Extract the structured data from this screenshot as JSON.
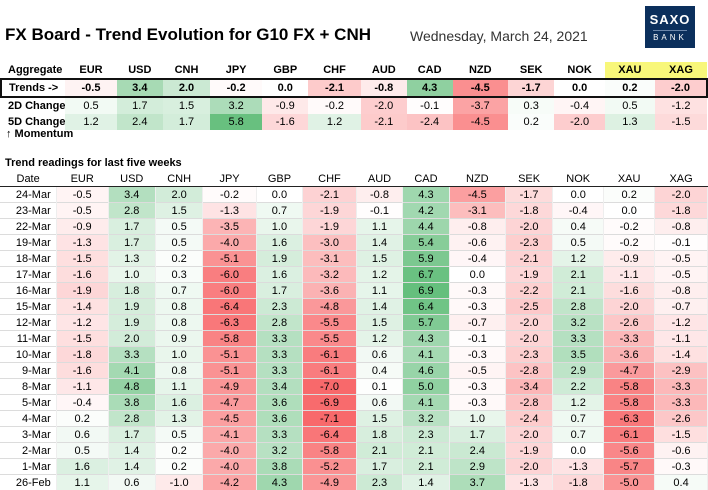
{
  "header": {
    "title": "FX Board - Trend Evolution for G10 FX + CNH",
    "date": "Wednesday, March 24, 2021",
    "logo_top": "SAXO",
    "logo_bottom": "BANK"
  },
  "colors": {
    "gold_header": "#f8f77a",
    "positive": "#63be7b",
    "negative": "#f8696b",
    "brand": "#0b2f5c"
  },
  "chart_data": {
    "type": "table",
    "currencies": [
      "EUR",
      "USD",
      "CNH",
      "JPY",
      "GBP",
      "CHF",
      "AUD",
      "CAD",
      "NZD",
      "SEK",
      "NOK",
      "XAU",
      "XAG"
    ],
    "aggregate": {
      "header_label": "Aggregate",
      "rows": [
        {
          "label": "Trends ->",
          "values": [
            -0.5,
            3.4,
            2.0,
            -0.2,
            0.0,
            -2.1,
            -0.8,
            4.3,
            -4.5,
            -1.7,
            0.0,
            0.2,
            -2.0
          ]
        },
        {
          "label": "2D Change",
          "values": [
            0.5,
            1.7,
            1.5,
            3.2,
            -0.9,
            -0.2,
            -2.0,
            -0.1,
            -3.7,
            0.3,
            -0.4,
            0.5,
            -1.2
          ]
        },
        {
          "label": "5D Change",
          "values": [
            1.2,
            2.4,
            1.7,
            5.8,
            -1.6,
            1.2,
            -2.1,
            -2.4,
            -4.5,
            0.2,
            -2.0,
            1.3,
            -1.5
          ]
        }
      ],
      "momentum_label": "↑ Momentum"
    },
    "weekly": {
      "subtitle": "Trend readings for last five weeks",
      "date_header": "Date",
      "rows": [
        {
          "date": "24-Mar",
          "values": [
            -0.5,
            3.4,
            2.0,
            -0.2,
            0.0,
            -2.1,
            -0.8,
            4.3,
            -4.5,
            -1.7,
            0.0,
            0.2,
            -2.0
          ]
        },
        {
          "date": "23-Mar",
          "values": [
            -0.5,
            2.8,
            1.5,
            -1.3,
            0.7,
            -1.9,
            -0.1,
            4.2,
            -3.1,
            -1.8,
            -0.4,
            0.0,
            -1.8
          ]
        },
        {
          "date": "22-Mar",
          "values": [
            -0.9,
            1.7,
            0.5,
            -3.5,
            1.0,
            -1.9,
            1.1,
            4.4,
            -0.8,
            -2.0,
            0.4,
            -0.2,
            -0.8
          ]
        },
        {
          "date": "19-Mar",
          "values": [
            -1.3,
            1.7,
            0.5,
            -4.0,
            1.6,
            -3.0,
            1.4,
            5.4,
            -0.6,
            -2.3,
            0.5,
            -0.2,
            -0.1
          ]
        },
        {
          "date": "18-Mar",
          "values": [
            -1.5,
            1.3,
            0.2,
            -5.1,
            1.9,
            -3.1,
            1.5,
            5.9,
            -0.4,
            -2.1,
            1.2,
            -0.9,
            -0.5
          ]
        },
        {
          "date": "17-Mar",
          "values": [
            -1.6,
            1.0,
            0.3,
            -6.0,
            1.6,
            -3.2,
            1.2,
            6.7,
            0.0,
            -1.9,
            2.1,
            -1.1,
            -0.5
          ]
        },
        {
          "date": "16-Mar",
          "values": [
            -1.9,
            1.8,
            0.7,
            -6.0,
            1.7,
            -3.6,
            1.1,
            6.9,
            -0.3,
            -2.2,
            2.1,
            -1.6,
            -0.8
          ]
        },
        {
          "date": "15-Mar",
          "values": [
            -1.4,
            1.9,
            0.8,
            -6.4,
            2.3,
            -4.8,
            1.4,
            6.4,
            -0.3,
            -2.5,
            2.8,
            -2.0,
            -0.7
          ]
        },
        {
          "date": "12-Mar",
          "values": [
            -1.2,
            1.9,
            0.8,
            -6.3,
            2.8,
            -5.5,
            1.5,
            5.7,
            -0.7,
            -2.0,
            3.2,
            -2.6,
            -1.2
          ]
        },
        {
          "date": "11-Mar",
          "values": [
            -1.5,
            2.0,
            0.9,
            -5.8,
            3.3,
            -5.5,
            1.2,
            4.3,
            -0.1,
            -2.0,
            3.3,
            -3.3,
            -1.1
          ]
        },
        {
          "date": "10-Mar",
          "values": [
            -1.8,
            3.3,
            1.0,
            -5.1,
            3.3,
            -6.1,
            0.6,
            4.1,
            -0.3,
            -2.3,
            3.5,
            -3.6,
            -1.4
          ]
        },
        {
          "date": "9-Mar",
          "values": [
            -1.6,
            4.1,
            0.8,
            -5.1,
            3.3,
            -6.1,
            0.4,
            4.6,
            -0.5,
            -2.8,
            2.9,
            -4.7,
            -2.9
          ]
        },
        {
          "date": "8-Mar",
          "values": [
            -1.1,
            4.8,
            1.1,
            -4.9,
            3.4,
            -7.0,
            0.1,
            5.0,
            -0.3,
            -3.4,
            2.2,
            -5.8,
            -3.3
          ]
        },
        {
          "date": "5-Mar",
          "values": [
            -0.4,
            3.8,
            1.6,
            -4.7,
            3.6,
            -6.9,
            0.6,
            4.1,
            -0.3,
            -2.8,
            1.2,
            -5.8,
            -3.3
          ]
        },
        {
          "date": "4-Mar",
          "values": [
            0.2,
            2.8,
            1.3,
            -4.5,
            3.6,
            -7.1,
            1.5,
            3.2,
            1.0,
            -2.4,
            0.7,
            -6.3,
            -2.6
          ]
        },
        {
          "date": "3-Mar",
          "values": [
            0.6,
            1.7,
            0.5,
            -4.1,
            3.3,
            -6.4,
            1.8,
            2.3,
            1.7,
            -2.0,
            0.7,
            -6.1,
            -1.5
          ]
        },
        {
          "date": "2-Mar",
          "values": [
            0.5,
            1.4,
            0.2,
            -4.0,
            3.2,
            -5.8,
            2.1,
            2.1,
            2.4,
            -1.9,
            0.0,
            -5.6,
            -0.6
          ]
        },
        {
          "date": "1-Mar",
          "values": [
            1.6,
            1.4,
            0.2,
            -4.0,
            3.8,
            -5.2,
            1.7,
            2.1,
            2.9,
            -2.0,
            -1.3,
            -5.7,
            -0.3
          ]
        },
        {
          "date": "26-Feb",
          "values": [
            1.1,
            0.6,
            -1.0,
            -4.2,
            4.3,
            -4.9,
            2.3,
            1.4,
            3.7,
            -1.3,
            -1.8,
            -5.0,
            0.4
          ]
        }
      ]
    }
  }
}
